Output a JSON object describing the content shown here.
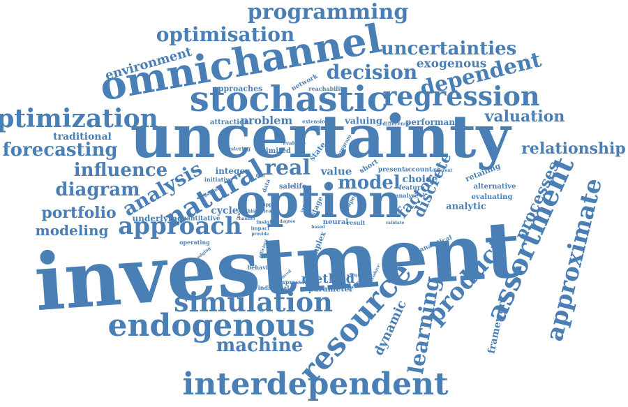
{
  "colors": {
    "word": "#4a7fb5",
    "background": "#ffffff"
  },
  "words": [
    "investment",
    "uncertainty",
    "option",
    "omnichannel",
    "stochastic",
    "regression",
    "resource",
    "assortment",
    "approximate",
    "interdependent",
    "endogenous",
    "simulation",
    "optimization",
    "programming",
    "optimisation",
    "uncertainties",
    "decision",
    "dependent",
    "exogenous",
    "analysis",
    "natural",
    "approach",
    "product",
    "learning",
    "real",
    "model",
    "factor",
    "discrete",
    "processes",
    "relationship",
    "forecasting",
    "influence",
    "diagram",
    "portfolio",
    "modeling",
    "machine",
    "valuation",
    "environment",
    "method",
    "dynamic",
    "framework",
    "problem",
    "traditional",
    "valuing",
    "performance",
    "integer",
    "value",
    "cycle",
    "underlying",
    "quantitative",
    "choice",
    "retailing",
    "alternative",
    "analytic",
    "evaluating",
    "approaches",
    "network",
    "reachability",
    "attraction",
    "extension",
    "state",
    "limited",
    "present",
    "account",
    "short",
    "feature",
    "analyse",
    "life",
    "sale",
    "initiative",
    "neural",
    "result",
    "stage",
    "paper",
    "complex",
    "parameter",
    "expression",
    "individual",
    "structure",
    "analytical",
    "behavior",
    "operating",
    "clustering",
    "evaluate",
    "program",
    "insight",
    "historical",
    "impact",
    "provide",
    "copper",
    "degree",
    "based",
    "introduce",
    "advanced",
    "numerical",
    "schwartz",
    "difference",
    "different",
    "channel",
    "data",
    "customer",
    "validate",
    "efficient",
    "modelling",
    "fuzzy",
    "hedging",
    "find"
  ]
}
